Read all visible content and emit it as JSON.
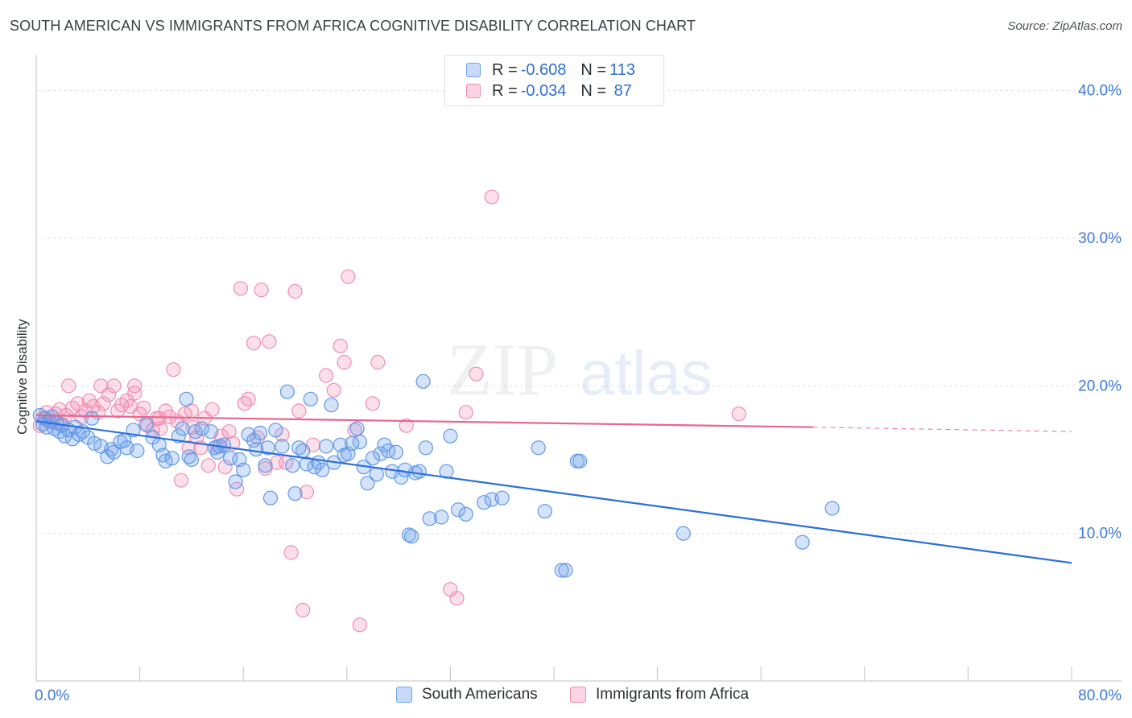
{
  "header": {
    "title": "SOUTH AMERICAN VS IMMIGRANTS FROM AFRICA COGNITIVE DISABILITY CORRELATION CHART",
    "source": "Source: ZipAtlas.com"
  },
  "watermark": {
    "zip": "ZIP",
    "atlas": "atlas"
  },
  "legend": {
    "rows": [
      {
        "r_label": "R = ",
        "r_value": "-0.608",
        "n_label": "N = ",
        "n_value": "113",
        "color": "#6fa3ee"
      },
      {
        "r_label": "R = ",
        "r_value": "-0.034",
        "n_label": "N = ",
        "n_value": " 87",
        "color": "#f08fb0"
      }
    ]
  },
  "bottom_legend": {
    "items": [
      {
        "label": "South Americans",
        "color": "#6fa3ee"
      },
      {
        "label": "Immigrants from Africa",
        "color": "#f08fb0"
      }
    ]
  },
  "chart_data": {
    "type": "scatter",
    "title": "SOUTH AMERICAN VS IMMIGRANTS FROM AFRICA COGNITIVE DISABILITY CORRELATION CHART",
    "xlabel": "",
    "ylabel": "Cognitive Disability",
    "xlim": [
      0,
      80
    ],
    "ylim": [
      0,
      42
    ],
    "x_tick_labels": [
      "0.0%",
      "80.0%"
    ],
    "y_ticks": [
      10,
      20,
      30,
      40
    ],
    "y_tick_labels": [
      "10.0%",
      "20.0%",
      "30.0%",
      "40.0%"
    ],
    "grid": true,
    "colors": {
      "south": "#6fa3ee",
      "south_line": "#2a6fd8",
      "africa": "#f08fb0",
      "africa_line": "#e8648f"
    },
    "series": [
      {
        "name": "South Americans",
        "trend": {
          "x": [
            0,
            80
          ],
          "y": [
            17.6,
            8.0
          ]
        },
        "points": [
          [
            0.3,
            18.0
          ],
          [
            0.5,
            17.4
          ],
          [
            0.7,
            17.8
          ],
          [
            0.8,
            17.2
          ],
          [
            1.0,
            17.6
          ],
          [
            1.2,
            17.9
          ],
          [
            1.4,
            17.1
          ],
          [
            1.6,
            17.5
          ],
          [
            1.8,
            16.9
          ],
          [
            2.0,
            17.3
          ],
          [
            2.2,
            16.6
          ],
          [
            2.5,
            17.0
          ],
          [
            2.8,
            16.4
          ],
          [
            3.0,
            17.2
          ],
          [
            3.3,
            16.7
          ],
          [
            3.6,
            16.9
          ],
          [
            4.0,
            16.5
          ],
          [
            4.3,
            17.8
          ],
          [
            4.5,
            16.1
          ],
          [
            5.0,
            15.9
          ],
          [
            5.5,
            15.2
          ],
          [
            5.8,
            15.7
          ],
          [
            6.0,
            15.5
          ],
          [
            6.5,
            16.2
          ],
          [
            6.8,
            16.3
          ],
          [
            7.0,
            15.8
          ],
          [
            7.5,
            17.0
          ],
          [
            7.8,
            15.6
          ],
          [
            8.5,
            17.4
          ],
          [
            9.0,
            16.5
          ],
          [
            9.5,
            16.0
          ],
          [
            9.8,
            15.3
          ],
          [
            10.0,
            14.9
          ],
          [
            10.5,
            15.1
          ],
          [
            11.0,
            16.6
          ],
          [
            11.3,
            17.1
          ],
          [
            11.6,
            19.1
          ],
          [
            11.8,
            15.2
          ],
          [
            12.0,
            15.0
          ],
          [
            12.3,
            16.9
          ],
          [
            12.8,
            17.1
          ],
          [
            13.5,
            16.9
          ],
          [
            13.8,
            15.8
          ],
          [
            14.0,
            15.5
          ],
          [
            14.2,
            15.9
          ],
          [
            14.5,
            16.0
          ],
          [
            15.0,
            15.1
          ],
          [
            15.4,
            13.5
          ],
          [
            15.7,
            15.0
          ],
          [
            16.0,
            14.3
          ],
          [
            16.4,
            16.7
          ],
          [
            16.8,
            16.3
          ],
          [
            17.0,
            15.7
          ],
          [
            17.3,
            16.8
          ],
          [
            17.7,
            14.6
          ],
          [
            17.9,
            15.8
          ],
          [
            18.1,
            12.4
          ],
          [
            18.5,
            17.0
          ],
          [
            19.0,
            15.9
          ],
          [
            19.4,
            19.6
          ],
          [
            19.8,
            14.6
          ],
          [
            20.0,
            12.7
          ],
          [
            20.3,
            15.8
          ],
          [
            20.6,
            15.6
          ],
          [
            20.9,
            14.7
          ],
          [
            21.2,
            19.1
          ],
          [
            21.5,
            14.5
          ],
          [
            21.8,
            14.8
          ],
          [
            22.1,
            14.3
          ],
          [
            22.4,
            15.9
          ],
          [
            22.8,
            18.7
          ],
          [
            23.0,
            14.8
          ],
          [
            23.5,
            16.0
          ],
          [
            23.8,
            15.3
          ],
          [
            24.1,
            15.4
          ],
          [
            24.4,
            16.1
          ],
          [
            24.8,
            17.1
          ],
          [
            25.0,
            16.2
          ],
          [
            25.3,
            14.5
          ],
          [
            25.6,
            13.4
          ],
          [
            26.0,
            15.1
          ],
          [
            26.3,
            14.0
          ],
          [
            26.6,
            15.4
          ],
          [
            26.9,
            16.0
          ],
          [
            27.2,
            15.6
          ],
          [
            27.5,
            14.2
          ],
          [
            27.8,
            15.5
          ],
          [
            28.2,
            13.8
          ],
          [
            28.5,
            14.3
          ],
          [
            28.8,
            9.9
          ],
          [
            29.0,
            9.8
          ],
          [
            29.3,
            14.1
          ],
          [
            29.6,
            14.2
          ],
          [
            29.9,
            20.3
          ],
          [
            30.1,
            15.8
          ],
          [
            30.4,
            11.0
          ],
          [
            31.3,
            11.1
          ],
          [
            31.7,
            14.2
          ],
          [
            32.0,
            16.6
          ],
          [
            32.6,
            11.6
          ],
          [
            33.2,
            11.3
          ],
          [
            34.6,
            12.1
          ],
          [
            35.2,
            12.3
          ],
          [
            36.0,
            12.4
          ],
          [
            38.8,
            15.8
          ],
          [
            39.3,
            11.5
          ],
          [
            40.6,
            7.5
          ],
          [
            40.9,
            7.5
          ],
          [
            41.8,
            14.9
          ],
          [
            42.0,
            14.9
          ],
          [
            50.0,
            10.0
          ],
          [
            59.2,
            9.4
          ],
          [
            61.5,
            11.7
          ]
        ]
      },
      {
        "name": "Immigrants from Africa",
        "trend": {
          "x": [
            0,
            60
          ],
          "y": [
            18.0,
            17.2
          ],
          "dashed_to": [
            80,
            16.9
          ]
        },
        "points": [
          [
            0.3,
            17.3
          ],
          [
            0.5,
            17.8
          ],
          [
            0.8,
            18.2
          ],
          [
            1.0,
            17.6
          ],
          [
            1.3,
            17.5
          ],
          [
            1.5,
            18.1
          ],
          [
            1.8,
            18.4
          ],
          [
            2.0,
            17.4
          ],
          [
            2.3,
            18.0
          ],
          [
            2.8,
            18.5
          ],
          [
            3.2,
            18.8
          ],
          [
            3.5,
            17.9
          ],
          [
            3.8,
            18.3
          ],
          [
            4.1,
            19.0
          ],
          [
            4.4,
            18.6
          ],
          [
            4.8,
            18.2
          ],
          [
            5.2,
            18.8
          ],
          [
            5.6,
            19.4
          ],
          [
            6.0,
            20.0
          ],
          [
            6.3,
            18.3
          ],
          [
            6.6,
            18.7
          ],
          [
            7.0,
            19.0
          ],
          [
            7.3,
            18.6
          ],
          [
            7.6,
            19.5
          ],
          [
            8.0,
            18.1
          ],
          [
            8.3,
            18.5
          ],
          [
            8.6,
            17.3
          ],
          [
            9.0,
            17.0
          ],
          [
            9.3,
            17.8
          ],
          [
            9.6,
            17.1
          ],
          [
            10.0,
            18.3
          ],
          [
            10.3,
            17.9
          ],
          [
            10.6,
            21.1
          ],
          [
            10.9,
            17.6
          ],
          [
            11.2,
            13.6
          ],
          [
            11.5,
            18.1
          ],
          [
            11.8,
            15.8
          ],
          [
            12.1,
            17.2
          ],
          [
            12.4,
            16.5
          ],
          [
            12.7,
            15.8
          ],
          [
            13.0,
            17.8
          ],
          [
            13.3,
            14.6
          ],
          [
            13.6,
            18.4
          ],
          [
            14.0,
            15.9
          ],
          [
            14.3,
            16.6
          ],
          [
            14.6,
            14.5
          ],
          [
            14.9,
            16.9
          ],
          [
            15.2,
            16.1
          ],
          [
            15.5,
            13.0
          ],
          [
            15.8,
            26.6
          ],
          [
            16.1,
            18.8
          ],
          [
            16.4,
            19.1
          ],
          [
            16.8,
            22.9
          ],
          [
            17.1,
            16.5
          ],
          [
            17.4,
            26.5
          ],
          [
            17.7,
            14.4
          ],
          [
            18.0,
            23.0
          ],
          [
            18.6,
            14.8
          ],
          [
            19.0,
            16.7
          ],
          [
            19.3,
            14.8
          ],
          [
            19.7,
            8.7
          ],
          [
            20.0,
            26.4
          ],
          [
            20.3,
            18.3
          ],
          [
            20.6,
            4.8
          ],
          [
            20.9,
            12.8
          ],
          [
            21.4,
            16.0
          ],
          [
            22.4,
            20.7
          ],
          [
            23.0,
            19.7
          ],
          [
            23.5,
            22.7
          ],
          [
            23.8,
            21.6
          ],
          [
            24.1,
            27.4
          ],
          [
            24.6,
            17.0
          ],
          [
            25.0,
            3.8
          ],
          [
            26.0,
            18.8
          ],
          [
            26.4,
            21.6
          ],
          [
            28.6,
            17.3
          ],
          [
            32.0,
            6.2
          ],
          [
            32.5,
            5.6
          ],
          [
            33.2,
            18.2
          ],
          [
            34.0,
            20.8
          ],
          [
            35.2,
            32.8
          ],
          [
            54.3,
            18.1
          ],
          [
            2.5,
            20.0
          ],
          [
            5.0,
            20.0
          ],
          [
            7.6,
            20.0
          ],
          [
            9.5,
            17.8
          ],
          [
            12.0,
            18.3
          ]
        ]
      }
    ]
  }
}
